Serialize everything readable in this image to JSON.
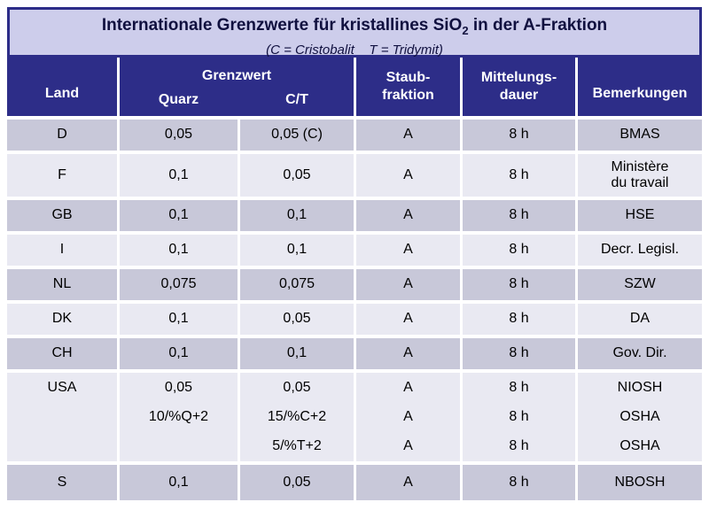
{
  "title": {
    "part1": "Internationale Grenzwerte für kristallines SiO",
    "subscript": "2",
    "part2": " in der A-Fraktion",
    "subtitle": "(C = Cristobalit    T = Tridymit)"
  },
  "header": {
    "land": "Land",
    "grenzwert": "Grenzwert",
    "quarz": "Quarz",
    "ct": "C/T",
    "staubfraktion": "Staub-\nfraktion",
    "mittelungsdauer": "Mittelungs-\ndauer",
    "bemerkungen": "Bemerkungen"
  },
  "colors": {
    "header_navy": "#2D2D88",
    "title_background": "#CDCDEB",
    "row_dark": "#C8C8D9",
    "row_light": "#E9E9F2",
    "header_text": "#FFFFFF",
    "body_text": "#000000"
  },
  "rows": [
    {
      "land": "D",
      "quarz": "0,05",
      "ct": "0,05 (C)",
      "staub": "A",
      "dauer": "8 h",
      "bemerkung": "BMAS"
    },
    {
      "land": "F",
      "quarz": "0,1",
      "ct": "0,05",
      "staub": "A",
      "dauer": "8 h",
      "bemerkung": "Ministère\ndu travail"
    },
    {
      "land": "GB",
      "quarz": "0,1",
      "ct": "0,1",
      "staub": "A",
      "dauer": "8 h",
      "bemerkung": "HSE"
    },
    {
      "land": "I",
      "quarz": "0,1",
      "ct": "0,1",
      "staub": "A",
      "dauer": "8 h",
      "bemerkung": "Decr. Legisl."
    },
    {
      "land": "NL",
      "quarz": "0,075",
      "ct": "0,075",
      "staub": "A",
      "dauer": "8 h",
      "bemerkung": "SZW"
    },
    {
      "land": "DK",
      "quarz": "0,1",
      "ct": "0,05",
      "staub": "A",
      "dauer": "8 h",
      "bemerkung": "DA"
    },
    {
      "land": "CH",
      "quarz": "0,1",
      "ct": "0,1",
      "staub": "A",
      "dauer": "8 h",
      "bemerkung": "Gov. Dir."
    }
  ],
  "usa": {
    "lines": [
      [
        "USA",
        "0,05",
        "0,05",
        "A",
        "8 h",
        "NIOSH"
      ],
      [
        "",
        "10/%Q+2",
        "15/%C+2",
        "A",
        "8 h",
        "OSHA"
      ],
      [
        "",
        "",
        "5/%T+2",
        "A",
        "8 h",
        "OSHA"
      ]
    ]
  },
  "last_row": {
    "land": "S",
    "quarz": "0,1",
    "ct": "0,05",
    "staub": "A",
    "dauer": "8 h",
    "bemerkung": "NBOSH"
  }
}
